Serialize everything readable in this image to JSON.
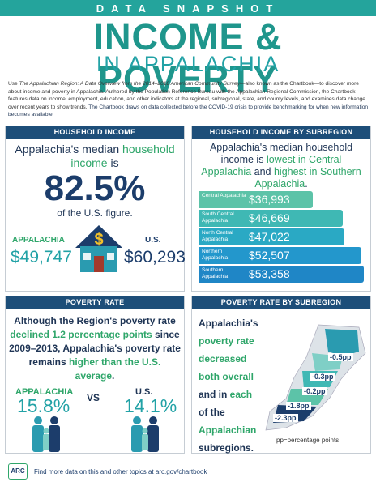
{
  "header": {
    "kicker": "DATA SNAPSHOT",
    "title": "INCOME & POVERTY",
    "subtitle": "IN APPALACHIA"
  },
  "intro": [
    "Use ",
    "The Appalachian Region: A Data Overview from the 2014–2018 American Community Survey",
    "—also known as the Chartbook—to discover more about income and poverty in Appalachia. Authored by the Population Reference Bureau with the Appalachian Regional Commission, the Chartbook features data on income, employment, education, and other indicators at the regional, subregional, state, and county levels, and examines data change over recent years to show trends. ",
    "The Chartbook draws on data collected before the COVID-19 crisis to provide benchmarking for when new information becomes available."
  ],
  "household_income": {
    "heading": "HOUSEHOLD INCOME",
    "text": [
      "Appalachia's median ",
      "household income",
      " is"
    ],
    "big": "82.5%",
    "caption": "of the U.S. figure.",
    "appalachia_label": "APPALACHIA",
    "appalachia_value": "$49,747",
    "us_label": "U.S.",
    "us_value": "$60,293"
  },
  "income_subregion": {
    "heading": "HOUSEHOLD INCOME BY SUBREGION",
    "text": [
      "Appalachia's median household income is ",
      "lowest in Central Appalachia",
      " and ",
      "highest in Southern Appalachia",
      "."
    ],
    "bars": [
      {
        "name": "Central Appalachia",
        "value": 36993,
        "label": "$36,993",
        "color": "#5cc3a8"
      },
      {
        "name": "South Central Appalachia",
        "value": 46669,
        "label": "$46,669",
        "color": "#3fb8b4"
      },
      {
        "name": "North Central Appalachia",
        "value": 47022,
        "label": "$47,022",
        "color": "#2aa9c4"
      },
      {
        "name": "Northern Appalachia",
        "value": 52507,
        "label": "$52,507",
        "color": "#2397cc"
      },
      {
        "name": "Southern Appalachia",
        "value": 53358,
        "label": "$53,358",
        "color": "#1f86c6"
      }
    ]
  },
  "poverty": {
    "heading": "POVERTY RATE",
    "text": [
      "Although the Region's poverty rate ",
      "declined 1.2 percentage points",
      " since 2009–2013, Appalachia's poverty rate remains ",
      "higher than the U.S. average",
      "."
    ],
    "appalachia_label": "APPALACHIA",
    "appalachia_value": "15.8%",
    "vs": "VS",
    "us_label": "U.S.",
    "us_value": "14.1%"
  },
  "poverty_subregion": {
    "heading": "POVERTY RATE BY SUBREGION",
    "lines": [
      [
        "Appalachia's ",
        "poverty rate"
      ],
      [
        "",
        "decreased"
      ],
      [
        "",
        "both overall"
      ],
      [
        "and in ",
        "each"
      ],
      [
        "of the",
        ""
      ],
      [
        "",
        "Appalachian"
      ],
      [
        "subregions.",
        ""
      ]
    ],
    "map_labels": [
      "-0.5pp",
      "-0.3pp",
      "-0.2pp",
      "-1.8pp",
      "-2.3pp"
    ],
    "note": "pp=percentage points"
  },
  "footer": {
    "logo": "ARC",
    "text": "Find more data on this and other topics at arc.gov/chartbook"
  }
}
